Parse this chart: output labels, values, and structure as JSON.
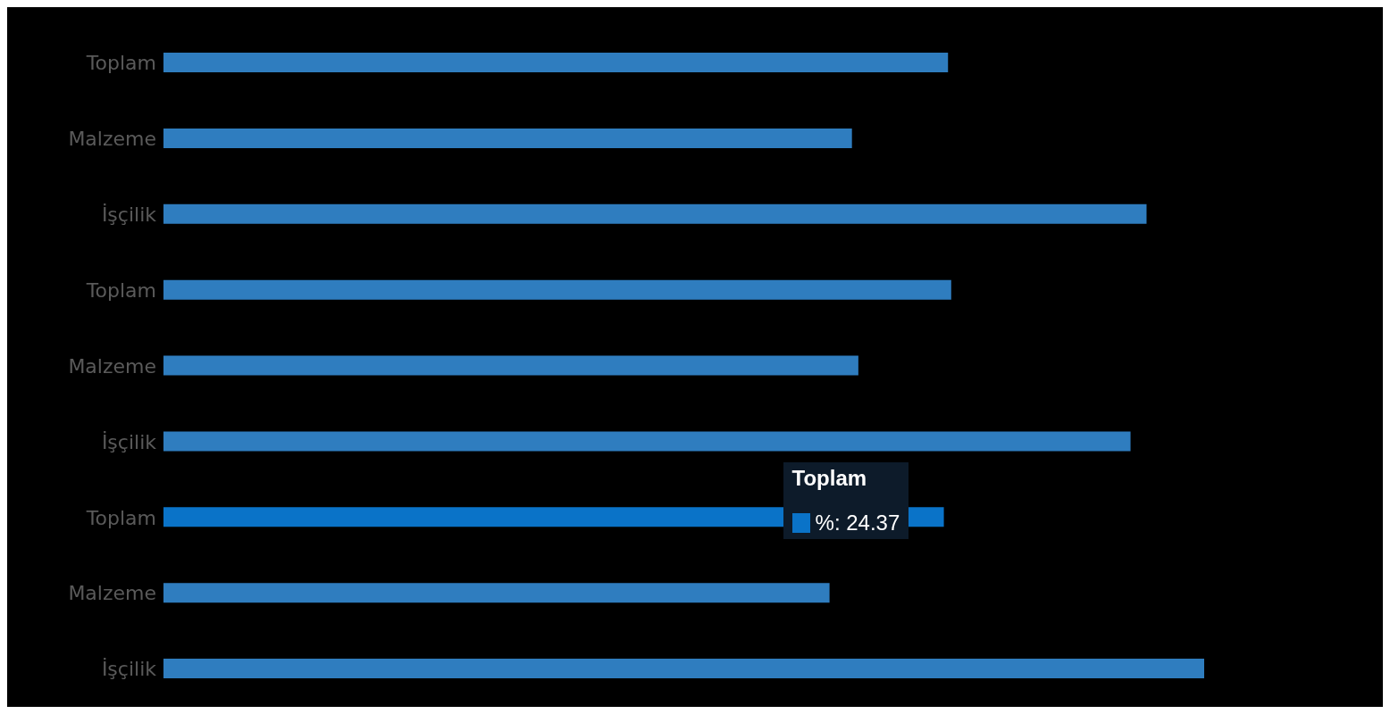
{
  "chart_data": {
    "type": "bar",
    "orientation": "horizontal",
    "categories": [
      "Toplam",
      "Malzeme",
      "İşçilik",
      "Toplam",
      "Malzeme",
      "İşçilik",
      "Toplam",
      "Malzeme",
      "İşçilik"
    ],
    "values": [
      24.5,
      21.5,
      30.7,
      24.6,
      21.7,
      30.2,
      24.37,
      20.8,
      32.5
    ],
    "value_labels": [
      null,
      null,
      null,
      null,
      null,
      null,
      "%: 24.37",
      null,
      null
    ],
    "colors": [
      "#2f7dbf",
      "#2f7dbf",
      "#2f7dbf",
      "#2f7dbf",
      "#2f7dbf",
      "#2f7dbf",
      "#0a73c8",
      "#2f7dbf",
      "#2f7dbf"
    ],
    "grid": false,
    "legend": false
  }
}
